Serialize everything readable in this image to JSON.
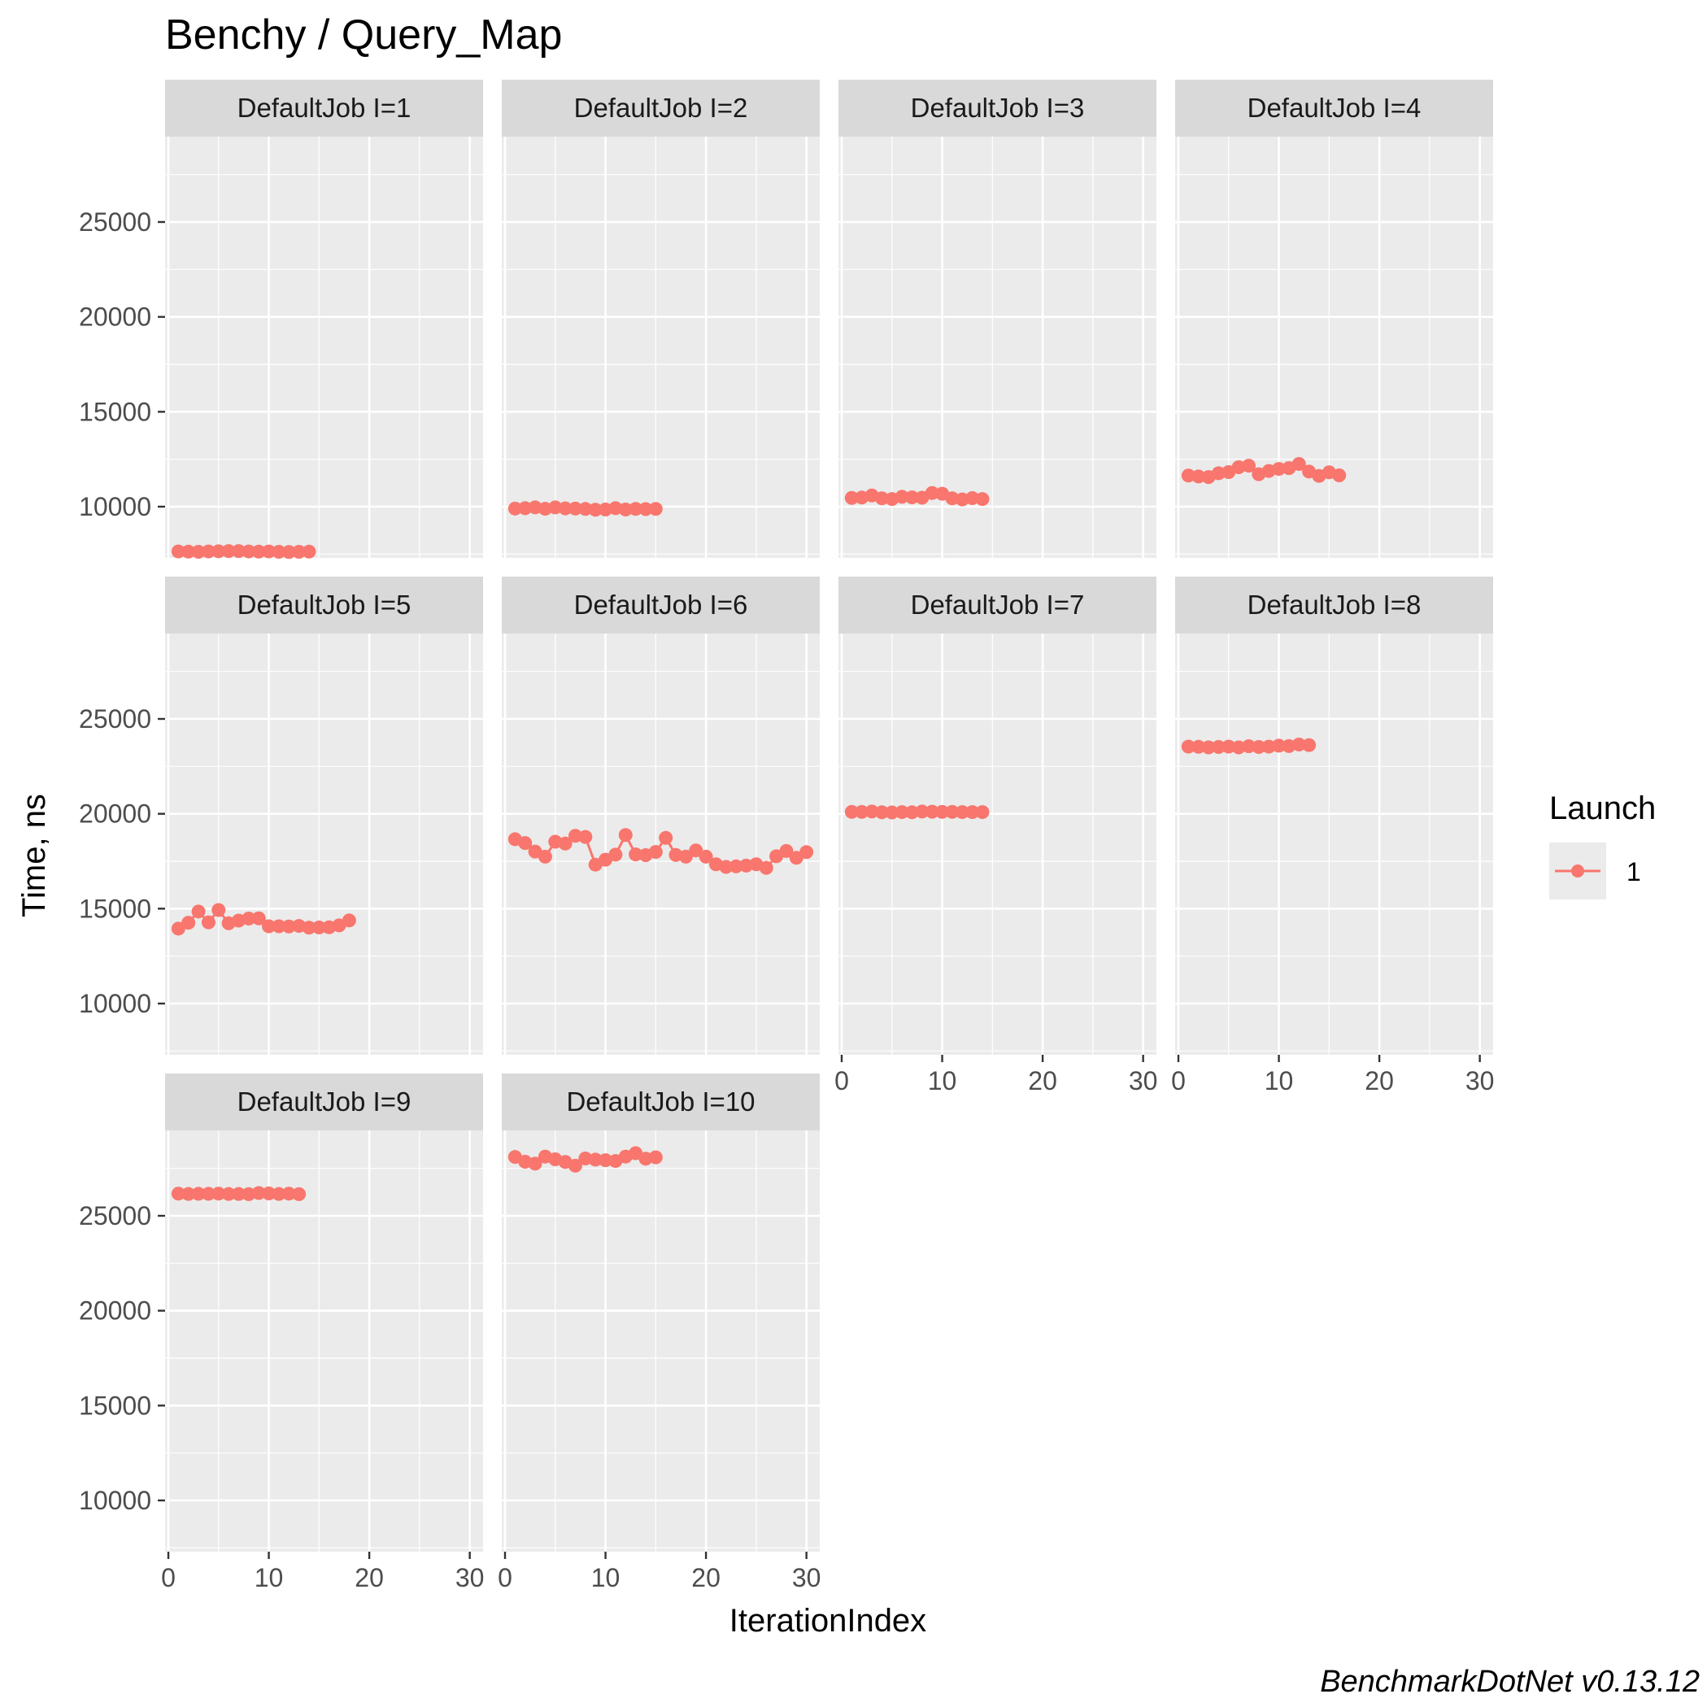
{
  "chart_data": {
    "type": "line",
    "title": "Benchy / Query_Map",
    "xlabel": "IterationIndex",
    "ylabel": "Time, ns",
    "caption": "BenchmarkDotNet v0.13.12",
    "xlim": [
      0,
      31
    ],
    "ylim": [
      7300,
      29500
    ],
    "x_ticks": [
      0,
      10,
      20,
      30
    ],
    "y_ticks": [
      10000,
      15000,
      20000,
      25000
    ],
    "grid": true,
    "legend": {
      "title": "Launch",
      "position": "right",
      "entries": [
        {
          "label": "1",
          "color": "#F8766D"
        }
      ]
    },
    "series_color": "#F8766D",
    "panels": [
      {
        "label": "DefaultJob I=1",
        "x": [
          1,
          2,
          3,
          4,
          5,
          6,
          7,
          8,
          9,
          10,
          11,
          12,
          13,
          14
        ],
        "y": [
          7640,
          7630,
          7620,
          7640,
          7650,
          7660,
          7660,
          7640,
          7630,
          7640,
          7620,
          7610,
          7620,
          7630
        ]
      },
      {
        "label": "DefaultJob I=2",
        "x": [
          1,
          2,
          3,
          4,
          5,
          6,
          7,
          8,
          9,
          10,
          11,
          12,
          13,
          14,
          15
        ],
        "y": [
          9900,
          9920,
          9960,
          9890,
          9960,
          9910,
          9900,
          9880,
          9840,
          9850,
          9920,
          9850,
          9880,
          9870,
          9880
        ]
      },
      {
        "label": "DefaultJob I=3",
        "x": [
          1,
          2,
          3,
          4,
          5,
          6,
          7,
          8,
          9,
          10,
          11,
          12,
          13,
          14
        ],
        "y": [
          10460,
          10480,
          10590,
          10440,
          10400,
          10520,
          10490,
          10470,
          10720,
          10680,
          10440,
          10380,
          10450,
          10400
        ]
      },
      {
        "label": "DefaultJob I=4",
        "x": [
          1,
          2,
          3,
          4,
          5,
          6,
          7,
          8,
          9,
          10,
          11,
          12,
          13,
          14,
          15,
          16
        ],
        "y": [
          11640,
          11590,
          11560,
          11760,
          11820,
          12080,
          12160,
          11710,
          11880,
          11990,
          12030,
          12250,
          11850,
          11620,
          11810,
          11650
        ]
      },
      {
        "label": "DefaultJob I=5",
        "x": [
          1,
          2,
          3,
          4,
          5,
          6,
          7,
          8,
          9,
          10,
          11,
          12,
          13,
          14,
          15,
          16,
          17,
          18
        ],
        "y": [
          13950,
          14260,
          14850,
          14280,
          14930,
          14230,
          14370,
          14480,
          14490,
          14070,
          14070,
          14060,
          14090,
          14000,
          14010,
          14020,
          14120,
          14380
        ]
      },
      {
        "label": "DefaultJob I=6",
        "x": [
          1,
          2,
          3,
          4,
          5,
          6,
          7,
          8,
          9,
          10,
          11,
          12,
          13,
          14,
          15,
          16,
          17,
          18,
          19,
          20,
          21,
          22,
          23,
          24,
          25,
          26,
          27,
          28,
          29,
          30
        ],
        "y": [
          18660,
          18460,
          18010,
          17740,
          18530,
          18430,
          18840,
          18780,
          17320,
          17580,
          17850,
          18880,
          17860,
          17820,
          17990,
          18730,
          17830,
          17740,
          18070,
          17740,
          17340,
          17200,
          17230,
          17270,
          17340,
          17150,
          17760,
          18040,
          17680,
          17980
        ]
      },
      {
        "label": "DefaultJob I=7",
        "x": [
          1,
          2,
          3,
          4,
          5,
          6,
          7,
          8,
          9,
          10,
          11,
          12,
          13,
          14
        ],
        "y": [
          20100,
          20100,
          20120,
          20080,
          20070,
          20090,
          20080,
          20120,
          20110,
          20100,
          20100,
          20090,
          20090,
          20090
        ]
      },
      {
        "label": "DefaultJob I=8",
        "x": [
          1,
          2,
          3,
          4,
          5,
          6,
          7,
          8,
          9,
          10,
          11,
          12,
          13
        ],
        "y": [
          23540,
          23530,
          23500,
          23520,
          23540,
          23500,
          23560,
          23520,
          23540,
          23590,
          23570,
          23650,
          23620
        ]
      },
      {
        "label": "DefaultJob I=9",
        "x": [
          1,
          2,
          3,
          4,
          5,
          6,
          7,
          8,
          9,
          10,
          11,
          12,
          13
        ],
        "y": [
          26170,
          26150,
          26160,
          26160,
          26170,
          26150,
          26150,
          26140,
          26200,
          26180,
          26150,
          26170,
          26140
        ]
      },
      {
        "label": "DefaultJob I=10",
        "x": [
          1,
          2,
          3,
          4,
          5,
          6,
          7,
          8,
          9,
          10,
          11,
          12,
          13,
          14,
          15
        ],
        "y": [
          28100,
          27850,
          27750,
          28120,
          27980,
          27840,
          27640,
          28020,
          27960,
          27930,
          27890,
          28120,
          28300,
          28010,
          28080
        ]
      }
    ]
  }
}
